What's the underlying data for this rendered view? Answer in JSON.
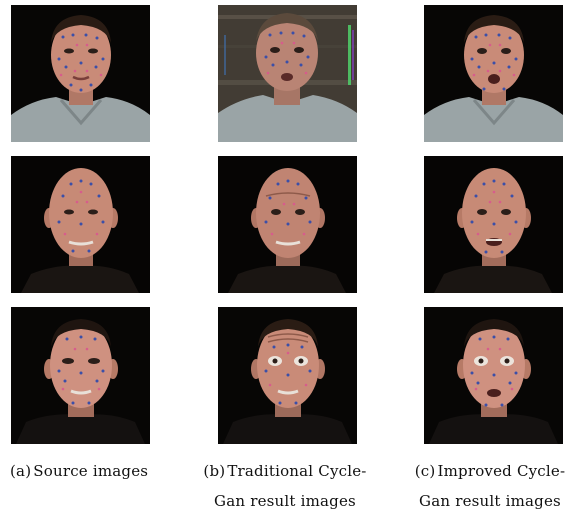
{
  "figure": {
    "captions": [
      {
        "letter": "(a)",
        "line1": "Source images",
        "line2": ""
      },
      {
        "letter": "(b)",
        "line1": "Traditional Cycle-",
        "line2": "Gan result images"
      },
      {
        "letter": "(c)",
        "line1": "Improved Cycle-",
        "line2": "Gan result images"
      }
    ],
    "grid": {
      "rows": 3,
      "columns": [
        "source",
        "traditional-cyclegan",
        "improved-cyclegan"
      ],
      "subjects": [
        "subject-1-hoodie",
        "subject-2-bald",
        "subject-3-dark-shirt"
      ]
    },
    "colors": {
      "background": "#070605",
      "skin": "#c98b78",
      "marker-dot-blue": "#3b4fa8",
      "marker-dot-pink": "#d75c8c",
      "hoodie": "#9aa4a6",
      "artifact-green": "#4fd06a"
    }
  }
}
